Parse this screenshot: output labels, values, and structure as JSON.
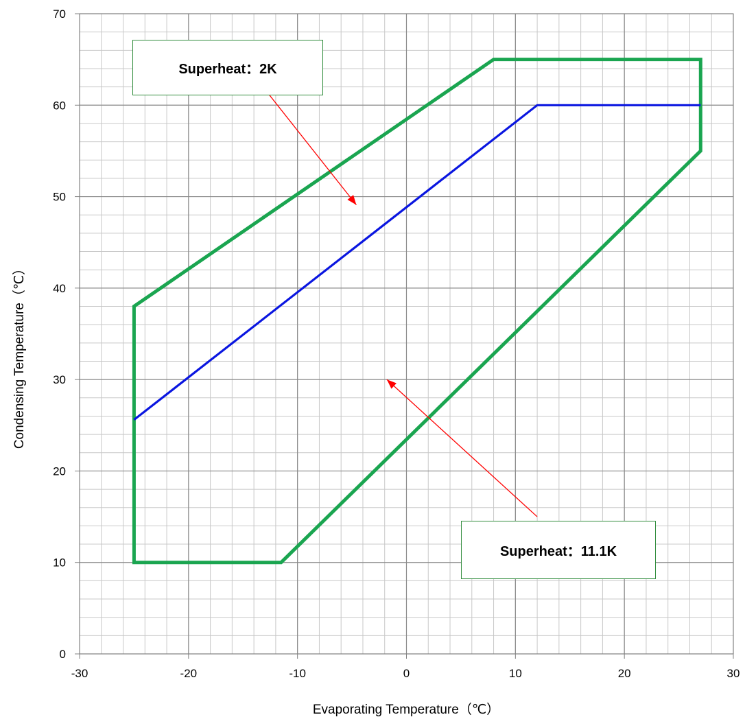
{
  "chart_data": {
    "type": "line",
    "xlabel": "Evaporating Temperature（℃）",
    "ylabel": "Condensing Temperature（℃）",
    "xlim": [
      -30,
      30
    ],
    "ylim": [
      0,
      70
    ],
    "x_ticks": [
      -30,
      -20,
      -10,
      0,
      10,
      20,
      30
    ],
    "y_ticks": [
      0,
      10,
      20,
      30,
      40,
      50,
      60,
      70
    ],
    "x_minor_step": 2,
    "y_minor_step": 2,
    "grid": true,
    "series": [
      {
        "color": "#1aa550",
        "closed": true,
        "x": [
          -25,
          -25,
          -11.5,
          27,
          27,
          8,
          -25
        ],
        "y": [
          38,
          10,
          10,
          55,
          65,
          65,
          38
        ]
      },
      {
        "color": "#0a16e0",
        "closed": false,
        "x": [
          -25,
          12,
          27
        ],
        "y": [
          25.6,
          60,
          60
        ]
      }
    ],
    "annotations": [
      {
        "text": "Superheat：2K",
        "arrow_from": [
          -13.5,
          62.5
        ],
        "arrow_to": [
          -4.6,
          49.1
        ]
      },
      {
        "text": "Superheat：11.1K",
        "arrow_from": [
          12,
          15
        ],
        "arrow_to": [
          -1.8,
          30
        ]
      }
    ],
    "arrow_color": "#ff0000"
  }
}
